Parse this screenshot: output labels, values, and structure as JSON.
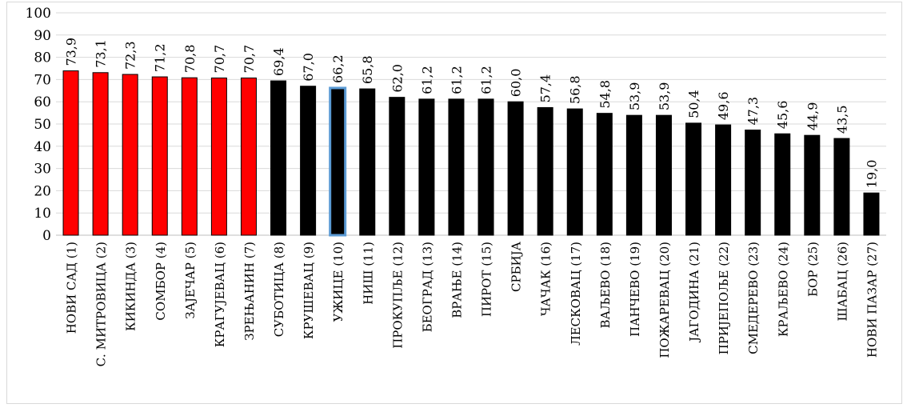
{
  "chart_data": {
    "type": "bar",
    "title": "",
    "xlabel": "",
    "ylabel": "",
    "ylim": [
      0,
      100
    ],
    "yticks": [
      0,
      10,
      20,
      30,
      40,
      50,
      60,
      70,
      80,
      90,
      100
    ],
    "grid": true,
    "categories": [
      "НОВИ САД (1)",
      "С. МИТРОВИЦА (2)",
      "КИКИНДА (3)",
      "СОМБОР (4)",
      "ЗАЈЕЧАР (5)",
      "КРАГУЈЕВАЦ (6)",
      "ЗРЕЊАНИН (7)",
      "СУБОТИЦА (8)",
      "КРУШЕВАЦ (9)",
      "УЖИЦЕ (10)",
      "НИШ (11)",
      "ПРОКУПЉЕ (12)",
      "БЕОГРАД (13)",
      "ВРАЊЕ (14)",
      "ПИРОТ (15)",
      "СРБИЈА",
      "ЧАЧАК (16)",
      "ЛЕСКОВАЦ (17)",
      "ВАЉЕВО (18)",
      "ПАНЧЕВО (19)",
      "ПОЖАРЕВАЦ (20)",
      "ЈАГОДИНА (21)",
      "ПРИЈЕПОЉЕ (22)",
      "СМЕДЕРЕВО (23)",
      "КРАЉЕВО (24)",
      "БОР (25)",
      "ШАБАЦ (26)",
      "НОВИ ПАЗАР (27)"
    ],
    "values": [
      73.9,
      73.1,
      72.3,
      71.2,
      70.8,
      70.7,
      70.7,
      69.4,
      67.0,
      66.2,
      65.8,
      62.0,
      61.2,
      61.2,
      61.2,
      60.0,
      57.4,
      56.8,
      54.8,
      53.9,
      53.9,
      50.4,
      49.6,
      47.3,
      45.6,
      44.9,
      43.5,
      19.0
    ],
    "value_labels": [
      "73,9",
      "73,1",
      "72,3",
      "71,2",
      "70,8",
      "70,7",
      "70,7",
      "69,4",
      "67,0",
      "66,2",
      "65,8",
      "62,0",
      "61,2",
      "61,2",
      "61,2",
      "60,0",
      "57,4",
      "56,8",
      "54,8",
      "53,9",
      "53,9",
      "50,4",
      "49,6",
      "47,3",
      "45,6",
      "44,9",
      "43,5",
      "19,0"
    ],
    "bar_colors": [
      "#ff0000",
      "#ff0000",
      "#ff0000",
      "#ff0000",
      "#ff0000",
      "#ff0000",
      "#ff0000",
      "#000000",
      "#000000",
      "#000000",
      "#000000",
      "#000000",
      "#000000",
      "#000000",
      "#000000",
      "#000000",
      "#000000",
      "#000000",
      "#000000",
      "#000000",
      "#000000",
      "#000000",
      "#000000",
      "#000000",
      "#000000",
      "#000000",
      "#000000",
      "#000000"
    ],
    "highlight_index": 9,
    "highlight_outline_color": "#5b9bd5",
    "bar_outline_color": "#000000",
    "grid_color": "#d9d9d9"
  }
}
